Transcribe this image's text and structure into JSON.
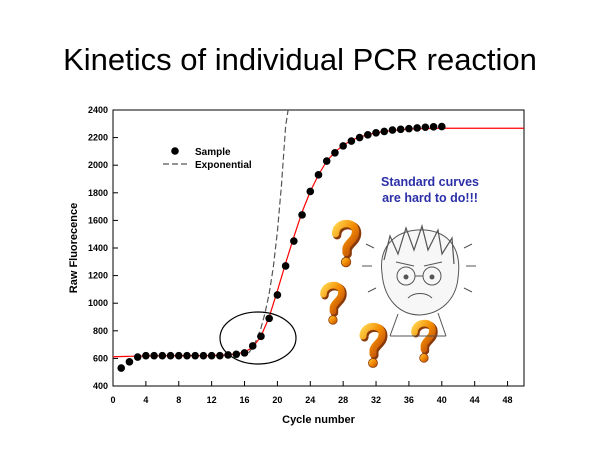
{
  "slide": {
    "title": "Kinetics of individual PCR reaction",
    "annotation_line1": "Standard curves",
    "annotation_line2": "are hard to do!!!"
  },
  "colors": {
    "fit_line": "#ff0000",
    "exponential_line": "#555555",
    "marker": "#000000",
    "annotation_text": "#2b2fa8",
    "question_mark": "#e07a00"
  },
  "decorations": [
    "question-mark-icon",
    "worried-face-sketch",
    "highlight-ellipse"
  ],
  "chart_data": {
    "type": "scatter",
    "title": "",
    "xlabel": "Cycle number",
    "ylabel": "Raw Fluorecence",
    "xlim": [
      0,
      50
    ],
    "ylim": [
      400,
      2400
    ],
    "xticks": [
      0,
      4,
      8,
      12,
      16,
      20,
      24,
      28,
      32,
      36,
      40,
      44,
      48
    ],
    "yticks": [
      400,
      600,
      800,
      1000,
      1200,
      1400,
      1600,
      1800,
      2000,
      2200,
      2400
    ],
    "grid": false,
    "legend_position": "top-left",
    "series": [
      {
        "name": "Sample",
        "kind": "markers",
        "x": [
          1,
          2,
          3,
          4,
          5,
          6,
          7,
          8,
          9,
          10,
          11,
          12,
          13,
          14,
          15,
          16,
          17,
          18,
          19,
          20,
          21,
          22,
          23,
          24,
          25,
          26,
          27,
          28,
          29,
          30,
          31,
          32,
          33,
          34,
          35,
          36,
          37,
          38,
          39,
          40
        ],
        "y": [
          530,
          575,
          610,
          620,
          620,
          620,
          620,
          620,
          620,
          620,
          620,
          620,
          620,
          625,
          630,
          640,
          690,
          760,
          890,
          1060,
          1270,
          1450,
          1640,
          1810,
          1930,
          2030,
          2090,
          2140,
          2175,
          2200,
          2220,
          2235,
          2245,
          2255,
          2260,
          2265,
          2270,
          2275,
          2278,
          2280
        ]
      },
      {
        "name": "Exponential",
        "kind": "dashed-line",
        "x": [
          16.5,
          17,
          17.5,
          18,
          18.5,
          19,
          19.5,
          20,
          20.5,
          21,
          21.3
        ],
        "y": [
          640,
          680,
          740,
          820,
          930,
          1070,
          1260,
          1520,
          1860,
          2280,
          2400
        ]
      },
      {
        "name": "",
        "kind": "fit-line",
        "x": [
          0,
          2,
          4,
          6,
          8,
          10,
          12,
          13,
          14,
          15,
          16,
          17,
          18,
          19,
          20,
          21,
          22,
          23,
          24,
          25,
          26,
          27,
          28,
          29,
          30,
          32,
          34,
          36,
          38,
          40,
          42,
          44,
          46,
          48,
          50
        ],
        "y": [
          612,
          615,
          618,
          619,
          620,
          620,
          621,
          623,
          626,
          632,
          646,
          680,
          760,
          900,
          1090,
          1290,
          1480,
          1660,
          1810,
          1930,
          2030,
          2095,
          2145,
          2180,
          2205,
          2235,
          2252,
          2262,
          2266,
          2268,
          2268,
          2268,
          2268,
          2268,
          2268
        ]
      }
    ]
  }
}
